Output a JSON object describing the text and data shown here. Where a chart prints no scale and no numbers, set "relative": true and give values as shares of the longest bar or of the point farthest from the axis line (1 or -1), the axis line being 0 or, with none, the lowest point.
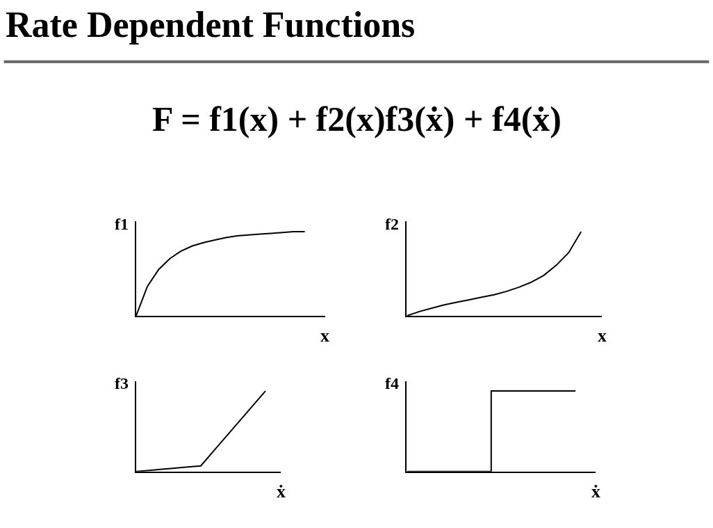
{
  "chart_data": [
    {
      "type": "line",
      "title": "Rate Dependent Functions",
      "subtitle": "F = f1(x) + f2(x)f3(ẋ) + f4(ẋ)",
      "ylabel": "f1",
      "xlabel": "x",
      "relative": true,
      "categories": [
        null,
        null,
        null,
        null,
        null,
        null,
        null,
        null,
        null,
        null,
        null,
        null,
        null,
        null,
        null,
        null
      ],
      "series": [
        {
          "color": "#000000",
          "values": [
            0,
            0.35,
            0.55,
            0.68,
            0.77,
            0.83,
            0.87,
            0.9,
            0.93,
            0.95,
            0.96,
            0.97,
            0.98,
            0.99,
            1.0,
            1.0
          ]
        }
      ]
    },
    {
      "type": "line",
      "ylabel": "f2",
      "xlabel": "x",
      "relative": true,
      "categories": [
        null,
        null,
        null,
        null,
        null,
        null,
        null,
        null,
        null,
        null,
        null,
        null,
        null,
        null,
        null
      ],
      "series": [
        {
          "color": "#000000",
          "values": [
            0,
            0.05,
            0.09,
            0.13,
            0.16,
            0.19,
            0.22,
            0.25,
            0.29,
            0.34,
            0.4,
            0.48,
            0.6,
            0.75,
            1.0
          ]
        }
      ]
    },
    {
      "type": "line",
      "ylabel": "f3",
      "xlabel": "ẋ",
      "relative": true,
      "categories": [
        null,
        null,
        null,
        null,
        null,
        null,
        null,
        null,
        null,
        null,
        null
      ],
      "series": [
        {
          "color": "#000000",
          "values": [
            0,
            0.014,
            0.028,
            0.042,
            0.056,
            0.07,
            0.256,
            0.442,
            0.628,
            0.814,
            1.0
          ]
        }
      ]
    },
    {
      "type": "step",
      "ylabel": "f4",
      "xlabel": "ẋ",
      "relative": true,
      "categories": [
        null,
        null,
        null,
        null,
        null,
        null,
        null,
        null,
        null
      ],
      "series": [
        {
          "color": "#000000",
          "values": [
            0,
            0,
            0,
            0,
            1,
            1,
            1,
            1,
            1
          ]
        }
      ]
    }
  ]
}
